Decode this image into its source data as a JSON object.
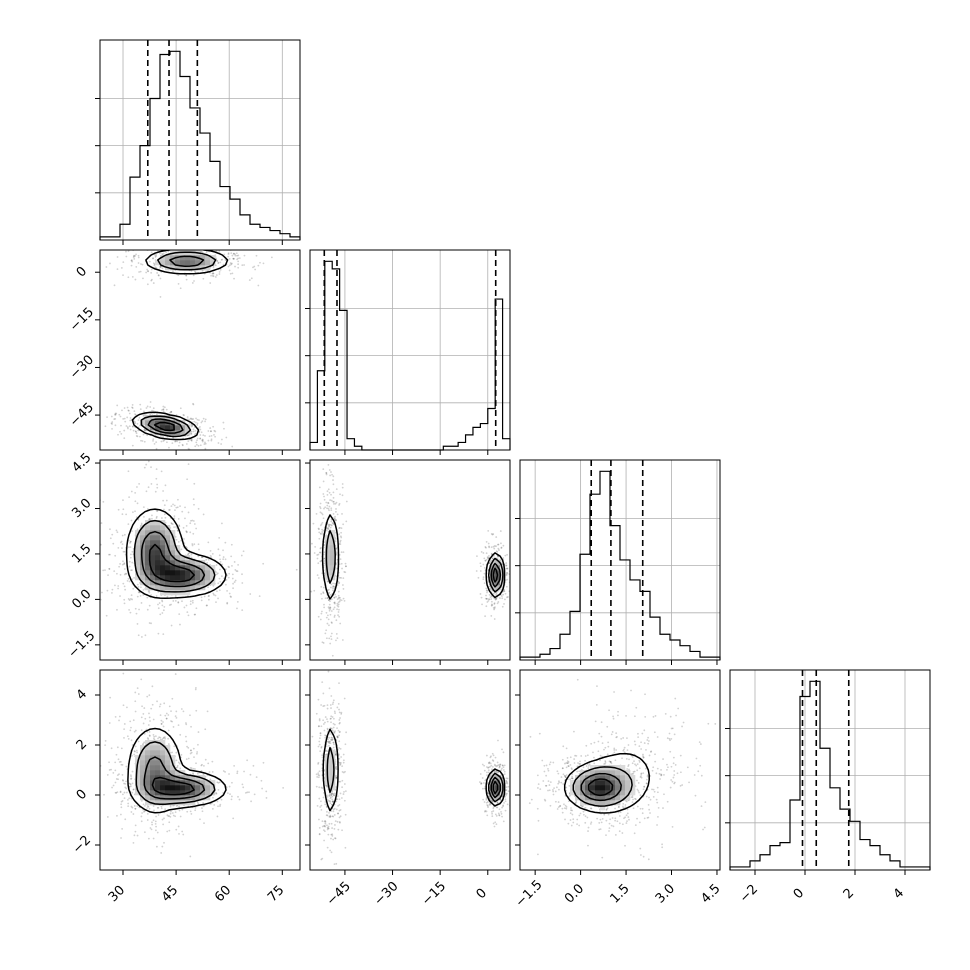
{
  "chart_data": {
    "type": "corner",
    "grid": true,
    "parameters": [
      {
        "ticks": [
          30,
          45,
          60,
          75
        ],
        "tick_labels": [
          "30",
          "45",
          "60",
          "75"
        ],
        "range": [
          23.5,
          80.0
        ],
        "quantiles": [
          37.0,
          43.0,
          51.0
        ],
        "hist": [
          1,
          1,
          5,
          20,
          30,
          45,
          59,
          60,
          52,
          42,
          34,
          25,
          17,
          13,
          8,
          5,
          4,
          3,
          2,
          1
        ],
        "hist_range": [
          23.5,
          80.0
        ]
      },
      {
        "ticks": [
          -45,
          -30,
          -15,
          0
        ],
        "tick_labels": [
          "−45",
          "−30",
          "−15",
          "0"
        ],
        "range": [
          -56.0,
          7.0
        ],
        "quantiles": [
          -51.5,
          -47.5,
          2.5
        ],
        "hist": [
          2,
          21,
          50,
          48,
          37,
          3,
          1,
          0,
          0,
          0,
          0,
          0,
          0,
          0,
          0,
          0,
          0,
          0,
          1,
          1,
          2,
          4,
          6,
          7,
          11,
          40,
          3
        ],
        "hist_range": [
          -56.0,
          7.0
        ]
      },
      {
        "ticks": [
          -1.5,
          0.0,
          1.5,
          3.0,
          4.5
        ],
        "tick_labels": [
          "−1.5",
          "0.0",
          "1.5",
          "3.0",
          "4.5"
        ],
        "range": [
          -2.0,
          4.6
        ],
        "quantiles": [
          0.35,
          1.0,
          2.05
        ],
        "hist": [
          1,
          1,
          2,
          4,
          9,
          17,
          37,
          58,
          66,
          47,
          35,
          28,
          24,
          15,
          9,
          7,
          5,
          3,
          1,
          1
        ],
        "hist_range": [
          -2.0,
          4.6
        ]
      },
      {
        "ticks": [
          -2,
          0,
          2,
          4
        ],
        "tick_labels": [
          "−2",
          "0",
          "2",
          "4"
        ],
        "range": [
          -3.0,
          5.0
        ],
        "quantiles": [
          -0.1,
          0.45,
          1.75
        ],
        "hist": [
          1,
          1,
          3,
          5,
          8,
          9,
          23,
          57,
          62,
          40,
          27,
          20,
          16,
          10,
          8,
          5,
          3,
          1,
          1,
          1
        ],
        "hist_range": [
          -3.0,
          5.0
        ]
      }
    ],
    "pairs": [
      {
        "row": 1,
        "col": 0,
        "y_ticks": [
          0,
          -15,
          -30,
          -45
        ],
        "y_tick_labels": [
          "0",
          "−15",
          "−30",
          "−45"
        ],
        "modes": [
          {
            "cx": 48.0,
            "cy": 3.5,
            "sx": 6.0,
            "sy": 2.0,
            "rho": 0.0,
            "weight": 0.5
          },
          {
            "cx": 42.0,
            "cy": -48.5,
            "sx": 4.5,
            "sy": 2.0,
            "rho": -0.4,
            "weight": 0.5
          }
        ]
      },
      {
        "row": 2,
        "col": 0,
        "y_ticks": [
          4.5,
          3.0,
          1.5,
          0.0,
          -1.5
        ],
        "y_tick_labels": [
          "4.5",
          "3.0",
          "1.5",
          "0.0",
          "−1.5"
        ],
        "modes": [
          {
            "cx": 39.0,
            "cy": 1.6,
            "sx": 4.0,
            "sy": 0.7,
            "rho": 0.0,
            "weight": 0.55
          },
          {
            "cx": 47.0,
            "cy": 0.8,
            "sx": 6.0,
            "sy": 0.35,
            "rho": 0.0,
            "weight": 0.45
          }
        ]
      },
      {
        "row": 2,
        "col": 1,
        "modes": [
          {
            "cx": -49.5,
            "cy": 1.4,
            "sx": 1.3,
            "sy": 0.8,
            "rho": 0.0,
            "weight": 0.55
          },
          {
            "cx": 2.5,
            "cy": 0.8,
            "sx": 1.3,
            "sy": 0.35,
            "rho": 0.0,
            "weight": 0.45
          }
        ]
      },
      {
        "row": 3,
        "col": 0,
        "y_ticks": [
          4,
          2,
          0,
          -2
        ],
        "y_tick_labels": [
          "4",
          "2",
          "0",
          "−2"
        ],
        "modes": [
          {
            "cx": 39.0,
            "cy": 1.0,
            "sx": 4.0,
            "sy": 0.9,
            "rho": 0.0,
            "weight": 0.55
          },
          {
            "cx": 47.0,
            "cy": 0.25,
            "sx": 6.0,
            "sy": 0.35,
            "rho": 0.0,
            "weight": 0.45
          }
        ]
      },
      {
        "row": 3,
        "col": 1,
        "modes": [
          {
            "cx": -49.5,
            "cy": 1.0,
            "sx": 1.3,
            "sy": 1.0,
            "rho": 0.0,
            "weight": 0.55
          },
          {
            "cx": 2.5,
            "cy": 0.3,
            "sx": 1.3,
            "sy": 0.35,
            "rho": 0.0,
            "weight": 0.45
          }
        ]
      },
      {
        "row": 3,
        "col": 2,
        "modes": [
          {
            "cx": 0.6,
            "cy": 0.3,
            "sx": 0.55,
            "sy": 0.45,
            "rho": 0.0,
            "weight": 0.6
          },
          {
            "cx": 1.4,
            "cy": 0.7,
            "sx": 0.8,
            "sy": 0.9,
            "rho": 0.1,
            "weight": 0.4
          }
        ]
      }
    ]
  }
}
